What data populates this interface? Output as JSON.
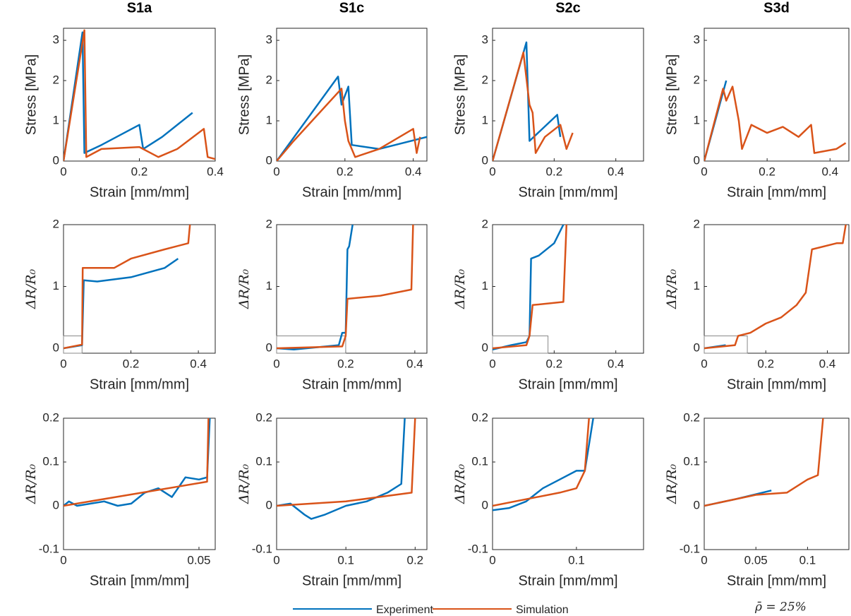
{
  "chart_data": [
    {
      "type": "line",
      "title": "S1a",
      "xlabel": "Strain [mm/mm]",
      "ylabel": "Stress [MPa]",
      "xlim": [
        0,
        0.4
      ],
      "ylim": [
        0,
        3.3
      ],
      "xticks": [
        0,
        0.2,
        0.4
      ],
      "yticks": [
        0,
        1,
        2,
        3
      ],
      "series": [
        {
          "color": "#0072BD",
          "x": [
            0,
            0.05,
            0.055,
            0.1,
            0.2,
            0.21,
            0.26,
            0.34
          ],
          "values": [
            0,
            3.2,
            0.2,
            0.4,
            0.9,
            0.3,
            0.6,
            1.2
          ]
        },
        {
          "color": "#D95319",
          "x": [
            0,
            0.055,
            0.06,
            0.1,
            0.2,
            0.25,
            0.3,
            0.37,
            0.38,
            0.4
          ],
          "values": [
            0,
            3.25,
            0.1,
            0.3,
            0.35,
            0.1,
            0.3,
            0.8,
            0.1,
            0.05
          ]
        }
      ]
    },
    {
      "type": "line",
      "title": "S1c",
      "xlabel": "Strain [mm/mm]",
      "ylabel": "Stress [MPa]",
      "xlim": [
        0,
        0.44
      ],
      "ylim": [
        0,
        3.3
      ],
      "xticks": [
        0,
        0.2,
        0.4
      ],
      "yticks": [
        0,
        1,
        2,
        3
      ],
      "series": [
        {
          "color": "#0072BD",
          "x": [
            0,
            0.18,
            0.19,
            0.21,
            0.22,
            0.3,
            0.44
          ],
          "values": [
            0,
            2.1,
            1.4,
            1.85,
            0.4,
            0.3,
            0.6
          ]
        },
        {
          "color": "#D95319",
          "x": [
            0,
            0.05,
            0.19,
            0.2,
            0.21,
            0.23,
            0.3,
            0.4,
            0.41,
            0.42
          ],
          "values": [
            0,
            0.5,
            1.8,
            1.0,
            0.5,
            0.1,
            0.3,
            0.8,
            0.2,
            0.6
          ]
        }
      ]
    },
    {
      "type": "line",
      "title": "S2c",
      "xlabel": "Strain [mm/mm]",
      "ylabel": "Stress [MPa]",
      "xlim": [
        0,
        0.49
      ],
      "ylim": [
        0,
        3.3
      ],
      "xticks": [
        0,
        0.2,
        0.4
      ],
      "yticks": [
        0,
        1,
        2,
        3
      ],
      "series": [
        {
          "color": "#0072BD",
          "x": [
            0,
            0.11,
            0.12,
            0.21,
            0.22
          ],
          "values": [
            0,
            2.95,
            0.5,
            1.15,
            0.6
          ]
        },
        {
          "color": "#D95319",
          "x": [
            0,
            0.1,
            0.12,
            0.13,
            0.14,
            0.17,
            0.22,
            0.24,
            0.26
          ],
          "values": [
            0,
            2.7,
            1.4,
            1.2,
            0.2,
            0.6,
            0.9,
            0.3,
            0.7
          ]
        }
      ]
    },
    {
      "type": "line",
      "title": "S3d",
      "xlabel": "Strain [mm/mm]",
      "ylabel": "Stress [MPa]",
      "xlim": [
        0,
        0.46
      ],
      "ylim": [
        0,
        3.3
      ],
      "xticks": [
        0,
        0.2,
        0.4
      ],
      "yticks": [
        0,
        1,
        2,
        3
      ],
      "series": [
        {
          "color": "#0072BD",
          "x": [
            0,
            0.07
          ],
          "values": [
            0,
            2.0
          ]
        },
        {
          "color": "#D95319",
          "x": [
            0,
            0.06,
            0.07,
            0.09,
            0.11,
            0.12,
            0.15,
            0.2,
            0.25,
            0.3,
            0.34,
            0.35,
            0.42,
            0.45
          ],
          "values": [
            0,
            1.8,
            1.5,
            1.85,
            1.0,
            0.3,
            0.9,
            0.7,
            0.85,
            0.6,
            0.9,
            0.2,
            0.3,
            0.45
          ]
        }
      ]
    },
    {
      "type": "line",
      "xlabel": "Strain [mm/mm]",
      "ylabel": "ΔR/R₀",
      "xlim": [
        0,
        0.45
      ],
      "ylim": [
        -0.08,
        2
      ],
      "xticks": [
        0,
        0.2,
        0.4
      ],
      "yticks": [
        0,
        1,
        2
      ],
      "zoom_box": {
        "x": [
          0,
          0.055
        ],
        "y": [
          -0.08,
          0.2
        ]
      },
      "series": [
        {
          "color": "#0072BD",
          "x": [
            0,
            0.055,
            0.06,
            0.1,
            0.2,
            0.3,
            0.34
          ],
          "values": [
            0,
            0.05,
            1.1,
            1.08,
            1.15,
            1.3,
            1.45
          ]
        },
        {
          "color": "#D95319",
          "x": [
            0,
            0.055,
            0.057,
            0.15,
            0.2,
            0.3,
            0.37,
            0.375
          ],
          "values": [
            0,
            0.06,
            1.3,
            1.3,
            1.45,
            1.6,
            1.7,
            2
          ]
        }
      ]
    },
    {
      "type": "line",
      "xlabel": "Strain [mm/mm]",
      "ylabel": "ΔR/R₀",
      "xlim": [
        0,
        0.435
      ],
      "ylim": [
        -0.08,
        2
      ],
      "xticks": [
        0,
        0.2,
        0.4
      ],
      "yticks": [
        0,
        1,
        2
      ],
      "zoom_box": {
        "x": [
          0,
          0.2
        ],
        "y": [
          -0.08,
          0.2
        ]
      },
      "series": [
        {
          "color": "#0072BD",
          "x": [
            0,
            0.05,
            0.18,
            0.19,
            0.2,
            0.205,
            0.21,
            0.22
          ],
          "values": [
            0,
            -0.02,
            0.05,
            0.25,
            0.25,
            1.6,
            1.65,
            2
          ]
        },
        {
          "color": "#D95319",
          "x": [
            0,
            0.19,
            0.2,
            0.205,
            0.3,
            0.39,
            0.395
          ],
          "values": [
            0,
            0.03,
            0.2,
            0.8,
            0.85,
            0.95,
            2
          ]
        }
      ]
    },
    {
      "type": "line",
      "xlabel": "Strain [mm/mm]",
      "ylabel": "ΔR/R₀",
      "xlim": [
        0,
        0.49
      ],
      "ylim": [
        -0.08,
        2
      ],
      "xticks": [
        0,
        0.2,
        0.4
      ],
      "yticks": [
        0,
        1,
        2
      ],
      "zoom_box": {
        "x": [
          0,
          0.18
        ],
        "y": [
          -0.08,
          0.2
        ]
      },
      "series": [
        {
          "color": "#0072BD",
          "x": [
            0,
            0.06,
            0.11,
            0.12,
            0.125,
            0.15,
            0.2,
            0.23
          ],
          "values": [
            -0.02,
            0.05,
            0.1,
            0.2,
            1.45,
            1.5,
            1.7,
            2
          ]
        },
        {
          "color": "#D95319",
          "x": [
            0,
            0.11,
            0.12,
            0.13,
            0.23,
            0.24
          ],
          "values": [
            0,
            0.05,
            0.2,
            0.7,
            0.75,
            2
          ]
        }
      ]
    },
    {
      "type": "line",
      "xlabel": "Strain [mm/mm]",
      "ylabel": "ΔR/R₀",
      "xlim": [
        0,
        0.47
      ],
      "ylim": [
        -0.08,
        2
      ],
      "xticks": [
        0,
        0.2,
        0.4
      ],
      "yticks": [
        0,
        1,
        2
      ],
      "zoom_box": {
        "x": [
          0,
          0.14
        ],
        "y": [
          -0.08,
          0.2
        ]
      },
      "series": [
        {
          "color": "#0072BD",
          "x": [
            0,
            0.07
          ],
          "values": [
            0,
            0.05
          ]
        },
        {
          "color": "#D95319",
          "x": [
            0,
            0.1,
            0.11,
            0.15,
            0.2,
            0.25,
            0.3,
            0.33,
            0.35,
            0.43,
            0.45,
            0.46
          ],
          "values": [
            0,
            0.05,
            0.2,
            0.25,
            0.4,
            0.5,
            0.7,
            0.9,
            1.6,
            1.7,
            1.7,
            2
          ]
        }
      ]
    },
    {
      "type": "line",
      "xlabel": "Strain [mm/mm]",
      "ylabel": "ΔR/R₀",
      "xlim": [
        0,
        0.056
      ],
      "ylim": [
        -0.1,
        0.2
      ],
      "xticks": [
        0,
        0.05
      ],
      "yticks": [
        -0.1,
        0,
        0.1,
        0.2
      ],
      "series": [
        {
          "color": "#0072BD",
          "x": [
            0,
            0.002,
            0.005,
            0.01,
            0.015,
            0.02,
            0.025,
            0.03,
            0.035,
            0.04,
            0.045,
            0.05,
            0.053,
            0.054
          ],
          "values": [
            0,
            0.01,
            0,
            0.005,
            0.01,
            0,
            0.005,
            0.03,
            0.04,
            0.02,
            0.065,
            0.06,
            0.065,
            0.2
          ]
        },
        {
          "color": "#D95319",
          "x": [
            0,
            0.053,
            0.0535
          ],
          "values": [
            0,
            0.055,
            0.2
          ]
        }
      ]
    },
    {
      "type": "line",
      "xlabel": "Strain [mm/mm]",
      "ylabel": "ΔR/R₀",
      "xlim": [
        0,
        0.217
      ],
      "ylim": [
        -0.1,
        0.2
      ],
      "xticks": [
        0,
        0.1,
        0.2
      ],
      "yticks": [
        -0.1,
        0,
        0.1,
        0.2
      ],
      "series": [
        {
          "color": "#0072BD",
          "x": [
            0,
            0.02,
            0.04,
            0.05,
            0.07,
            0.1,
            0.13,
            0.16,
            0.18,
            0.185
          ],
          "values": [
            0,
            0.005,
            -0.02,
            -0.03,
            -0.02,
            0,
            0.01,
            0.03,
            0.05,
            0.2
          ]
        },
        {
          "color": "#D95319",
          "x": [
            0,
            0.1,
            0.195,
            0.2
          ],
          "values": [
            0,
            0.01,
            0.03,
            0.2
          ]
        }
      ]
    },
    {
      "type": "line",
      "xlabel": "Strain [mm/mm]",
      "ylabel": "ΔR/R₀",
      "xlim": [
        0,
        0.18
      ],
      "ylim": [
        -0.1,
        0.2
      ],
      "xticks": [
        0,
        0.1
      ],
      "yticks": [
        -0.1,
        0,
        0.1,
        0.2
      ],
      "series": [
        {
          "color": "#0072BD",
          "x": [
            0,
            0.02,
            0.04,
            0.06,
            0.08,
            0.1,
            0.11,
            0.12
          ],
          "values": [
            -0.01,
            -0.005,
            0.01,
            0.04,
            0.06,
            0.08,
            0.08,
            0.2
          ]
        },
        {
          "color": "#D95319",
          "x": [
            0,
            0.08,
            0.1,
            0.11,
            0.115
          ],
          "values": [
            0,
            0.03,
            0.04,
            0.08,
            0.2
          ]
        }
      ]
    },
    {
      "type": "line",
      "xlabel": "Strain [mm/mm]",
      "ylabel": "ΔR/R₀",
      "xlim": [
        0,
        0.14
      ],
      "ylim": [
        -0.1,
        0.2
      ],
      "xticks": [
        0,
        0.05,
        0.1
      ],
      "yticks": [
        -0.1,
        0,
        0.1,
        0.2
      ],
      "series": [
        {
          "color": "#0072BD",
          "x": [
            0,
            0.03,
            0.065
          ],
          "values": [
            0,
            0.015,
            0.035
          ]
        },
        {
          "color": "#D95319",
          "x": [
            0,
            0.05,
            0.08,
            0.1,
            0.11,
            0.115
          ],
          "values": [
            0,
            0.025,
            0.03,
            0.06,
            0.07,
            0.2
          ]
        }
      ]
    }
  ],
  "legend": [
    {
      "name": "Experiment",
      "color": "#0072BD"
    },
    {
      "name": "Simulation",
      "color": "#D95319"
    }
  ],
  "annotation": "ρ̄ = 25%"
}
